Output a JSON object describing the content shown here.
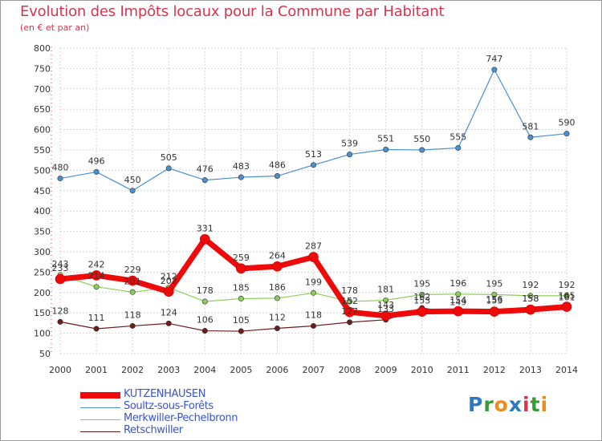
{
  "title": "Evolution des Impôts locaux pour la Commune par Habitant",
  "subtitle": "(en € et par an)",
  "logo_text": "Proxiti",
  "chart_data": {
    "type": "line",
    "title": "Evolution des Impôts locaux pour la Commune par Habitant",
    "subtitle": "(en € et par an)",
    "xlabel": "",
    "ylabel": "",
    "ylim": [
      50,
      800
    ],
    "yticks": [
      50,
      100,
      150,
      200,
      250,
      300,
      350,
      400,
      450,
      500,
      550,
      600,
      650,
      700,
      750,
      800
    ],
    "grid": true,
    "legend_position": "bottom",
    "x": [
      2000,
      2001,
      2002,
      2003,
      2004,
      2005,
      2006,
      2007,
      2008,
      2009,
      2010,
      2011,
      2012,
      2013,
      2014
    ],
    "series": [
      {
        "name": "Soultz-sous-Forêts",
        "color": "#4a90d0",
        "values": [
          480,
          496,
          450,
          505,
          476,
          483,
          486,
          513,
          539,
          551,
          550,
          555,
          747,
          581,
          590
        ]
      },
      {
        "name": "Merkwiller-Pechelbronn",
        "color": "#8ccc5a",
        "values": [
          243,
          214,
          201,
          212,
          178,
          185,
          186,
          199,
          178,
          181,
          195,
          196,
          195,
          192,
          192
        ]
      },
      {
        "name": "Retschwiller",
        "color": "#6b1c1c",
        "values": [
          128,
          111,
          118,
          124,
          106,
          105,
          112,
          118,
          127,
          133,
          162,
          149,
          156,
          158,
          161
        ]
      },
      {
        "name": "KUTZENHAUSEN",
        "color": "#ee0a0a",
        "values": [
          233,
          242,
          229,
          202,
          331,
          259,
          264,
          287,
          152,
          143,
          153,
          154,
          153,
          158,
          165
        ]
      }
    ]
  }
}
